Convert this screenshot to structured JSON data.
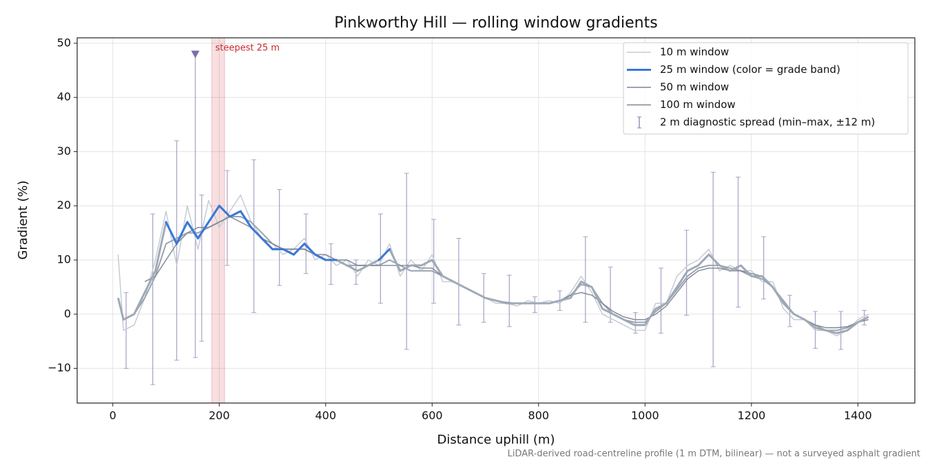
{
  "chart_data": {
    "type": "line",
    "title": "Pinkworthy Hill — rolling window gradients",
    "x_label": "Distance uphill (m)",
    "y_label": "Gradient (%)",
    "footnote": "LiDAR-derived road-centreline profile (1 m DTM, bilinear) — not a surveyed asphalt gradient",
    "xlim": [
      -67,
      1507
    ],
    "ylim": [
      -16.4,
      51
    ],
    "xticks": [
      0,
      200,
      400,
      600,
      800,
      1000,
      1200,
      1400
    ],
    "yticks": [
      {
        "value": -10,
        "label": "−10"
      },
      0,
      10,
      20,
      30,
      40,
      50
    ],
    "grid": true,
    "legend": "upper right",
    "x": [
      10,
      20,
      40,
      60,
      80,
      100,
      120,
      140,
      160,
      180,
      200,
      220,
      240,
      260,
      280,
      300,
      320,
      340,
      360,
      380,
      400,
      420,
      440,
      460,
      480,
      500,
      520,
      540,
      560,
      580,
      600,
      620,
      640,
      660,
      680,
      700,
      720,
      740,
      760,
      780,
      800,
      820,
      840,
      860,
      880,
      900,
      920,
      940,
      960,
      980,
      1000,
      1020,
      1040,
      1060,
      1080,
      1100,
      1120,
      1140,
      1160,
      1180,
      1200,
      1220,
      1240,
      1260,
      1280,
      1300,
      1320,
      1340,
      1360,
      1380,
      1400,
      1420
    ],
    "series": [
      {
        "name": "10 m window",
        "color": "#c5cbd5",
        "width": 1.5,
        "values": [
          11,
          -3,
          -2,
          3,
          10,
          19,
          9,
          20,
          12,
          21,
          16,
          19,
          22,
          17,
          14,
          13,
          11,
          12,
          14,
          10,
          11,
          9,
          10,
          7,
          10,
          9,
          13,
          7,
          10,
          8,
          11,
          6,
          6,
          5,
          4,
          3,
          2,
          2,
          1.5,
          2.5,
          2,
          2.5,
          2,
          4,
          7,
          4,
          0,
          -1,
          -2,
          -3,
          -3,
          2,
          2,
          7,
          9,
          10,
          12,
          8,
          9,
          8,
          8,
          6,
          6,
          1,
          -1,
          -1,
          -3,
          -3,
          -4,
          -3,
          -1,
          0
        ]
      },
      {
        "name": "25 m window (color = grade band)",
        "color": "#3a78d8",
        "width": 3,
        "band_base_color": "#a0a9b6",
        "grade_bands": [
          {
            "min": 10,
            "color": "#3a78d8"
          },
          {
            "min": 20,
            "color": "#f0900a"
          }
        ],
        "values": [
          3,
          -1,
          0,
          4,
          8,
          17,
          13,
          17,
          14,
          17,
          20,
          18,
          19,
          16,
          14,
          12,
          12,
          11,
          13,
          11,
          10,
          10,
          9,
          8,
          9,
          10,
          12,
          8,
          9,
          9,
          10,
          7,
          6,
          5,
          4,
          3,
          2.5,
          2,
          2,
          2,
          2,
          2,
          2.5,
          3,
          6,
          5,
          1,
          0,
          -1,
          -2,
          -2,
          1,
          2,
          5,
          8,
          9,
          11,
          9,
          8,
          9,
          7,
          7,
          5,
          2,
          0,
          -1,
          -2.5,
          -3,
          -3.5,
          -3,
          -1.5,
          -0.5
        ]
      },
      {
        "name": "50 m window",
        "color": "#9aa3b1",
        "width": 2,
        "values": [
          3,
          -1,
          0,
          3,
          7,
          13,
          14,
          15,
          15,
          16,
          17,
          18,
          18,
          17,
          15,
          13,
          12,
          12,
          12,
          11,
          10,
          10,
          9,
          9,
          9,
          9,
          10,
          9,
          8,
          8,
          8,
          7,
          6,
          5,
          4,
          3,
          2.5,
          2,
          2,
          2,
          2,
          2,
          2.5,
          3.5,
          5.5,
          5,
          2,
          0,
          -1,
          -1.5,
          -1.5,
          0.5,
          2,
          4.5,
          7,
          8.5,
          9,
          9,
          8.5,
          8,
          7,
          6.5,
          5,
          2.5,
          0,
          -1,
          -2,
          -3,
          -3,
          -2.5,
          -1.5,
          -0.5
        ]
      },
      {
        "name": "100 m window",
        "color": "#7d8593",
        "width": 1.4,
        "values": [
          null,
          null,
          null,
          6,
          7,
          10,
          13,
          15,
          16,
          16,
          17,
          18,
          17,
          16,
          14,
          13,
          12,
          12,
          12,
          11,
          11,
          10,
          10,
          9,
          9,
          9,
          9,
          9,
          9,
          8.5,
          8.5,
          7,
          6,
          5,
          4,
          3,
          2.5,
          2.2,
          2,
          2,
          2,
          2,
          2.5,
          3.5,
          4,
          3.5,
          2,
          0.5,
          -0.5,
          -1,
          -1,
          0,
          1.5,
          4,
          6.5,
          8,
          8.5,
          8.5,
          8,
          8,
          7.5,
          7,
          5,
          2,
          0,
          -1,
          -2,
          -2.5,
          -2.5,
          -2.3,
          -1.5,
          -1
        ]
      }
    ],
    "spread": {
      "name": "2 m diagnostic spread (min–max, ±12 m)",
      "color": "#8a80b0",
      "x": [
        25,
        75,
        120,
        155,
        167,
        215,
        265,
        313,
        363,
        410,
        457,
        503,
        552,
        603,
        650,
        697,
        745,
        793,
        840,
        888,
        935,
        982,
        1030,
        1078,
        1128,
        1175,
        1223,
        1272,
        1320,
        1368,
        1412
      ],
      "min": [
        -10,
        -13,
        -8.5,
        -8,
        -5,
        9,
        0.3,
        5.3,
        7.5,
        5.5,
        5.5,
        2,
        -6.5,
        2,
        -2,
        -1.5,
        -2.3,
        0.3,
        0.7,
        -1.5,
        -1.5,
        -3.5,
        -3.5,
        -0.2,
        -9.7,
        1.3,
        2.8,
        -2.3,
        -6.3,
        -6.5,
        -2
      ],
      "max": [
        4,
        18.5,
        32,
        48,
        22,
        26.5,
        28.5,
        23,
        18.5,
        13,
        10,
        18.5,
        26,
        17.5,
        14,
        7.5,
        7.2,
        3.2,
        4.3,
        14.3,
        8.7,
        0.3,
        8.5,
        15.5,
        26.2,
        25.3,
        14.3,
        3.5,
        0.5,
        0.5,
        0.7
      ]
    },
    "marker": {
      "x": 155,
      "y": 48,
      "color": "#7a6fa8"
    },
    "highlight": {
      "x0": 186,
      "x1": 210,
      "label": "steepest 25 m",
      "color": "#c8282e"
    }
  }
}
